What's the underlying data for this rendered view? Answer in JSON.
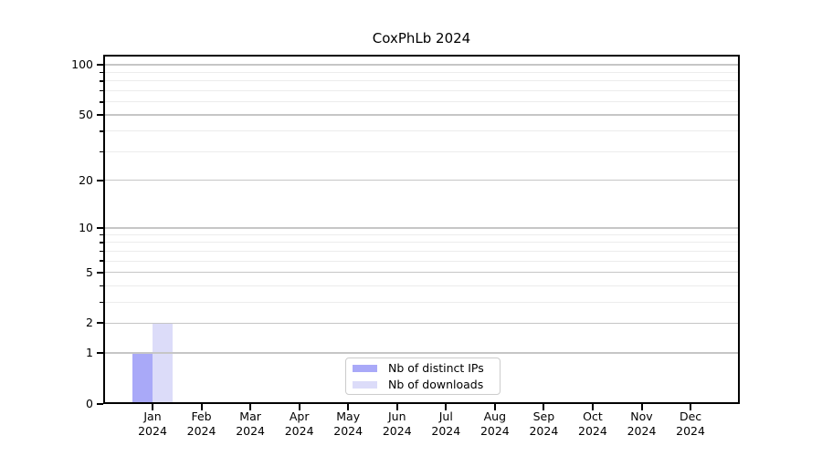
{
  "title": "CoxPhLb 2024",
  "chart_data": {
    "type": "bar",
    "title": "CoxPhLb 2024",
    "categories": [
      "Jan",
      "Feb",
      "Mar",
      "Apr",
      "May",
      "Jun",
      "Jul",
      "Aug",
      "Sep",
      "Oct",
      "Nov",
      "Dec"
    ],
    "year_label": "2024",
    "series": [
      {
        "name": "Nb of distinct IPs",
        "color": "#a9a9f8",
        "values": [
          1,
          0,
          0,
          0,
          0,
          0,
          0,
          0,
          0,
          0,
          0,
          0
        ]
      },
      {
        "name": "Nb of downloads",
        "color": "#dcdcf9",
        "values": [
          2,
          0,
          0,
          0,
          0,
          0,
          0,
          0,
          0,
          0,
          0,
          0
        ]
      }
    ],
    "yscale": "log1p",
    "ylim": [
      0,
      115
    ],
    "yticks": [
      0,
      1,
      2,
      5,
      10,
      20,
      50,
      100
    ],
    "yticks_minor": [
      3,
      4,
      6,
      7,
      8,
      9,
      30,
      40,
      60,
      70,
      80,
      90
    ],
    "grid": "horizontal",
    "legend_position": "lower-center-inside"
  },
  "colors": {
    "axis": "#000000",
    "grid_major": "#c6c6c6",
    "grid_minor": "#ececec",
    "legend_border": "#cccccc",
    "background": "#ffffff"
  }
}
